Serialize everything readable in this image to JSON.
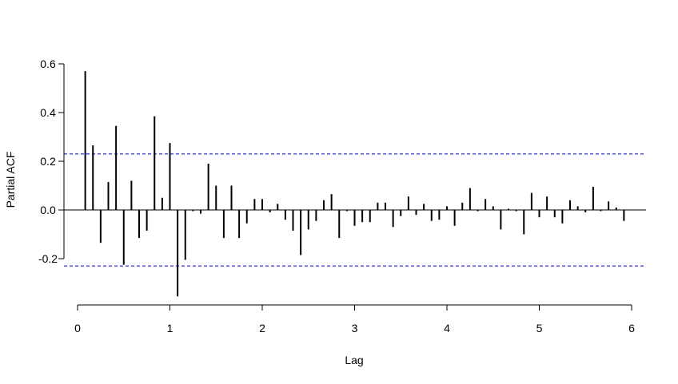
{
  "chart_data": {
    "type": "bar",
    "subtype": "pacf-spikes",
    "xlabel": "Lag",
    "ylabel": "Partial ACF",
    "x_ticks": [
      0,
      1,
      2,
      3,
      4,
      5,
      6
    ],
    "x_tick_labels": [
      "0",
      "1",
      "2",
      "3",
      "4",
      "5",
      "6"
    ],
    "y_ticks": [
      -0.2,
      0.0,
      0.2,
      0.4,
      0.6
    ],
    "y_tick_labels": [
      "-0.2",
      "0.0",
      "0.2",
      "0.4",
      "0.6"
    ],
    "xlim": [
      0,
      6
    ],
    "ylim": [
      -0.36,
      0.6
    ],
    "confidence_bound": 0.23,
    "confidence_color": "#0000cc",
    "spike_color": "#000000",
    "grid": false,
    "legend": "none",
    "lags": [
      0.0833,
      0.1667,
      0.25,
      0.3333,
      0.4167,
      0.5,
      0.5833,
      0.6667,
      0.75,
      0.8333,
      0.9167,
      1.0,
      1.0833,
      1.1667,
      1.25,
      1.3333,
      1.4167,
      1.5,
      1.5833,
      1.6667,
      1.75,
      1.8333,
      1.9167,
      2.0,
      2.0833,
      2.1667,
      2.25,
      2.3333,
      2.4167,
      2.5,
      2.5833,
      2.6667,
      2.75,
      2.8333,
      2.9167,
      3.0,
      3.0833,
      3.1667,
      3.25,
      3.3333,
      3.4167,
      3.5,
      3.5833,
      3.6667,
      3.75,
      3.8333,
      3.9167,
      4.0,
      4.0833,
      4.1667,
      4.25,
      4.3333,
      4.4167,
      4.5,
      4.5833,
      4.6667,
      4.75,
      4.8333,
      4.9167,
      5.0,
      5.0833,
      5.1667,
      5.25,
      5.3333,
      5.4167,
      5.5,
      5.5833,
      5.6667,
      5.75,
      5.8333,
      5.9167
    ],
    "values": [
      0.57,
      0.265,
      -0.135,
      0.115,
      0.345,
      -0.225,
      0.12,
      -0.115,
      -0.085,
      0.385,
      0.05,
      0.275,
      -0.355,
      -0.205,
      -0.005,
      -0.015,
      0.19,
      0.1,
      -0.115,
      0.1,
      -0.115,
      -0.055,
      0.045,
      0.045,
      -0.01,
      0.025,
      -0.04,
      -0.085,
      -0.185,
      -0.08,
      -0.045,
      0.04,
      0.065,
      -0.115,
      -0.005,
      -0.065,
      -0.05,
      -0.05,
      0.03,
      0.03,
      -0.07,
      -0.025,
      0.055,
      -0.02,
      0.025,
      -0.045,
      -0.04,
      0.015,
      -0.065,
      0.03,
      0.09,
      -0.005,
      0.045,
      0.015,
      -0.08,
      0.005,
      -0.005,
      -0.1,
      0.07,
      -0.03,
      0.055,
      -0.03,
      -0.055,
      0.04,
      0.015,
      -0.01,
      0.095,
      -0.005,
      0.035,
      0.01,
      -0.045
    ]
  }
}
